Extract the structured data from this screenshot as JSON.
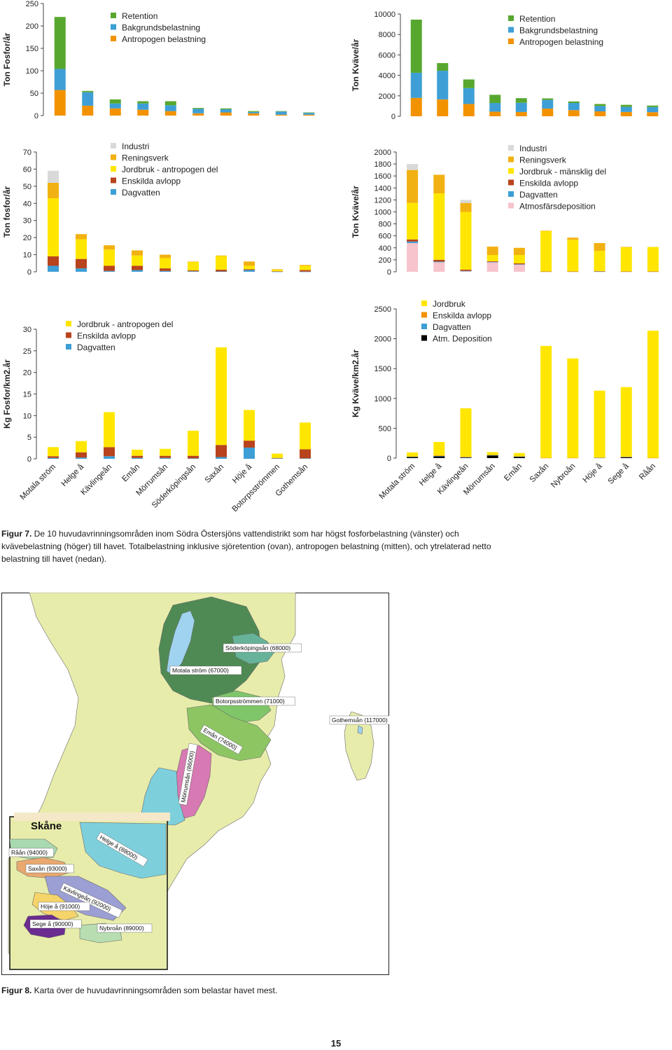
{
  "chart_data": [
    {
      "id": "p-total",
      "type": "bar",
      "stacked": true,
      "title": "",
      "ylabel": "Ton Fosfor/år",
      "ylim": [
        0,
        250
      ],
      "yticks": [
        0,
        50,
        100,
        150,
        200,
        250
      ],
      "categories": [
        "Motala ström",
        "Helge å",
        "Kävlingeån",
        "Emån",
        "Mörrumsån",
        "Söderköpingsån",
        "Saxån",
        "Höje å",
        "Botorpsströmmen",
        "Gothemsån"
      ],
      "show_categories": false,
      "legend": "top-left",
      "series": [
        {
          "name": "Antropogen belastning",
          "color": "#f39200",
          "values": [
            57,
            22,
            16,
            13,
            10,
            5,
            7,
            5,
            2,
            2
          ]
        },
        {
          "name": "Bakgrundsbelastning",
          "color": "#3e9fd6",
          "values": [
            47,
            30,
            11,
            14,
            13,
            10,
            7,
            3,
            7,
            4
          ]
        },
        {
          "name": "Retention",
          "color": "#57a72e",
          "values": [
            116,
            3,
            9,
            5,
            9,
            2,
            2,
            2,
            1,
            1
          ]
        }
      ],
      "legend_order": [
        "Retention",
        "Bakgrundsbelastning",
        "Antropogen belastning"
      ]
    },
    {
      "id": "n-total",
      "type": "bar",
      "stacked": true,
      "title": "",
      "ylabel": "Ton Kväve/år",
      "ylim": [
        0,
        10000
      ],
      "yticks": [
        0,
        2000,
        4000,
        6000,
        8000,
        10000
      ],
      "categories": [
        "Motala ström",
        "Helge å",
        "Kävlingeån",
        "Mörrumsån",
        "Emån",
        "Saxån",
        "Nybroån",
        "Höje å",
        "Sege å",
        "Råån"
      ],
      "show_categories": false,
      "legend": "top-left",
      "series": [
        {
          "name": "Antropogen belastning",
          "color": "#f39200",
          "values": [
            1800,
            1650,
            1200,
            450,
            420,
            750,
            600,
            480,
            420,
            400
          ]
        },
        {
          "name": "Bakgrundsbelastning",
          "color": "#3e9fd6",
          "values": [
            2450,
            2800,
            1550,
            850,
            900,
            850,
            700,
            520,
            500,
            500
          ]
        },
        {
          "name": "Retention",
          "color": "#57a72e",
          "values": [
            5200,
            750,
            850,
            800,
            450,
            150,
            150,
            200,
            200,
            150
          ]
        }
      ],
      "legend_order": [
        "Retention",
        "Bakgrundsbelastning",
        "Antropogen belastning"
      ]
    },
    {
      "id": "p-anthro",
      "type": "bar",
      "stacked": true,
      "title": "",
      "ylabel": "Ton fosfor/år",
      "ylim": [
        0,
        70
      ],
      "yticks": [
        0,
        10,
        20,
        30,
        40,
        50,
        60,
        70
      ],
      "categories": [
        "Motala ström",
        "Helge å",
        "Kävlingeån",
        "Emån",
        "Mörrumsån",
        "Söderköpingsån",
        "Saxån",
        "Höje å",
        "Botorpsströmmen",
        "Gothemsån"
      ],
      "show_categories": false,
      "legend": "top-left",
      "series": [
        {
          "name": "Dagvatten",
          "color": "#3e9fd6",
          "values": [
            3.5,
            2,
            0.5,
            1,
            0.5,
            0.3,
            0.2,
            1,
            0.1,
            0.1
          ]
        },
        {
          "name": "Enskilda avlopp",
          "color": "#b8431d",
          "values": [
            5.5,
            5.5,
            3,
            2.5,
            1.5,
            0.5,
            1,
            0.5,
            0.2,
            0.9
          ]
        },
        {
          "name": "Jordbruk - antropogen del",
          "color": "#ffe600",
          "values": [
            34,
            11.5,
            9.5,
            6,
            6,
            5,
            8,
            2,
            1,
            2.5
          ]
        },
        {
          "name": "Reningsverk",
          "color": "#f2b112",
          "values": [
            9,
            3,
            2.5,
            3,
            2,
            0.2,
            0.3,
            2.5,
            0.2,
            0.5
          ]
        },
        {
          "name": "Industri",
          "color": "#d9d9d9",
          "values": [
            7,
            0,
            0,
            0,
            0,
            0,
            0,
            0,
            0,
            0
          ]
        }
      ],
      "legend_order": [
        "Industri",
        "Reningsverk",
        "Jordbruk - antropogen del",
        "Enskilda avlopp",
        "Dagvatten"
      ]
    },
    {
      "id": "n-anthro",
      "type": "bar",
      "stacked": true,
      "title": "",
      "ylabel": "Ton Kväve/år",
      "ylim": [
        0,
        2000
      ],
      "yticks": [
        0,
        200,
        400,
        600,
        800,
        1000,
        1200,
        1400,
        1600,
        1800,
        2000
      ],
      "categories": [
        "Motala ström",
        "Helge å",
        "Kävlingeån",
        "Mörrumsån",
        "Emån",
        "Saxån",
        "Nybroån",
        "Höje å",
        "Sege å",
        "Råån"
      ],
      "show_categories": false,
      "legend": "top-right",
      "series": [
        {
          "name": "Atmosfärsdeposition",
          "color": "#f7c3cc",
          "values": [
            480,
            160,
            10,
            160,
            120,
            0,
            0,
            0,
            0,
            0
          ]
        },
        {
          "name": "Dagvatten",
          "color": "#3e9fd6",
          "values": [
            25,
            10,
            5,
            5,
            5,
            0,
            0,
            5,
            0,
            0
          ]
        },
        {
          "name": "Enskilda avlopp",
          "color": "#b8431d",
          "values": [
            35,
            30,
            20,
            10,
            15,
            5,
            5,
            5,
            5,
            5
          ]
        },
        {
          "name": "Jordbruk - mänsklig del",
          "color": "#ffe600",
          "values": [
            610,
            1110,
            965,
            105,
            140,
            675,
            530,
            340,
            405,
            410
          ]
        },
        {
          "name": "Reningsverk",
          "color": "#f2b112",
          "values": [
            550,
            310,
            150,
            140,
            120,
            5,
            35,
            130,
            5,
            0
          ]
        },
        {
          "name": "Industri",
          "color": "#d9d9d9",
          "values": [
            100,
            0,
            50,
            0,
            0,
            0,
            0,
            0,
            0,
            0
          ]
        }
      ],
      "legend_order": [
        "Industri",
        "Reningsverk",
        "Jordbruk - mänsklig del",
        "Enskilda avlopp",
        "Dagvatten",
        "Atmosfärsdeposition"
      ]
    },
    {
      "id": "p-area",
      "type": "bar",
      "stacked": true,
      "title": "",
      "ylabel": "Kg Fosfor/km2.år",
      "ylim": [
        0,
        30
      ],
      "yticks": [
        0,
        5,
        10,
        15,
        20,
        25,
        30
      ],
      "categories": [
        "Motala ström",
        "Helge å",
        "Kävlingeån",
        "Emån",
        "Mörrumsån",
        "Söderköpingsån",
        "Saxån",
        "Höje å",
        "Botorpsströmmen",
        "Gothemsån"
      ],
      "show_categories": true,
      "legend": "top-left",
      "series": [
        {
          "name": "Dagvatten",
          "color": "#3e9fd6",
          "values": [
            0.2,
            0.3,
            0.6,
            0.2,
            0.2,
            0.1,
            0.4,
            2.6,
            0.1,
            0.1
          ]
        },
        {
          "name": "Enskilda avlopp",
          "color": "#b8431d",
          "values": [
            0.4,
            1.2,
            2.1,
            0.5,
            0.5,
            0.6,
            2.8,
            1.6,
            0.1,
            2.1
          ]
        },
        {
          "name": "Jordbruk - antropogen del",
          "color": "#ffe600",
          "values": [
            2.1,
            2.6,
            8.1,
            1.4,
            1.6,
            5.8,
            22.6,
            7.1,
            1.0,
            6.2
          ]
        }
      ],
      "legend_order": [
        "Jordbruk - antropogen del",
        "Enskilda avlopp",
        "Dagvatten"
      ]
    },
    {
      "id": "n-area",
      "type": "bar",
      "stacked": true,
      "title": "",
      "ylabel": "Kg Kväve/km2.år",
      "ylim": [
        0,
        2500
      ],
      "yticks": [
        0,
        500,
        1000,
        1500,
        2000,
        2500
      ],
      "categories": [
        "Motala ström",
        "Helge å",
        "Kävlingeån",
        "Mörrumsån",
        "Emån",
        "Saxån",
        "Nybroån",
        "Höje å",
        "Sege å",
        "Råån"
      ],
      "show_categories": true,
      "legend": "top-left",
      "series": [
        {
          "name": "Atm. Deposition",
          "color": "#000000",
          "values": [
            18,
            30,
            10,
            45,
            22,
            0,
            0,
            0,
            15,
            0
          ]
        },
        {
          "name": "Dagvatten",
          "color": "#3e9fd6",
          "values": [
            5,
            5,
            5,
            5,
            5,
            0,
            0,
            5,
            5,
            0
          ]
        },
        {
          "name": "Enskilda avlopp",
          "color": "#f39200",
          "values": [
            5,
            10,
            10,
            5,
            5,
            5,
            5,
            5,
            5,
            5
          ]
        },
        {
          "name": "Jordbruk",
          "color": "#ffe600",
          "values": [
            67,
            225,
            810,
            45,
            53,
            1875,
            1665,
            1120,
            1165,
            2130
          ]
        }
      ],
      "legend_order": [
        "Jordbruk",
        "Enskilda avlopp",
        "Dagvatten",
        "Atm. Deposition"
      ]
    }
  ],
  "fig7_caption": {
    "label": "Figur 7.",
    "text": " De 10 huvudavrinningsområden inom Södra Östersjöns vattendistrikt som har högst fosforbelastning (vänster) och kvävebelastning (höger) till havet. Totalbelastning inklusive sjöretention (ovan), antropogen belastning (mitten), och ytrelaterad netto belastning till havet (nedan)."
  },
  "map": {
    "inset_title": "Skåne",
    "labels": [
      "Söderköpingsån (68000)",
      "Motala ström (67000)",
      "Botorpsströmmen (71000)",
      "Gothemsån (117000)",
      "Emån (74000)",
      "Mörrumsån (86000)",
      "Helge å (88000)",
      "Råån (94000)",
      "Saxån (93000)",
      "Kävlingeån (92000)",
      "Höje å (91000)",
      "Sege å (90000)",
      "Nybroån (89000)"
    ],
    "colors": {
      "land": "#e8ecab",
      "sea": "#ffffff",
      "lake": "#9fd3ef",
      "motala": "#4f8a55",
      "soderkoping": "#66b39a",
      "botorp": "#7fc66a",
      "eman": "#8dc563",
      "morrum": "#d779b2",
      "helge": "#7ecfdc",
      "raan": "#a9d9b0",
      "saxan": "#e9a86f",
      "kavlinge": "#9c9fd3",
      "hoje": "#f5d46a",
      "sege": "#6b2c8f",
      "nybro": "#b7ddb1",
      "gothem": "#e8ecab"
    }
  },
  "fig8_caption": {
    "label": "Figur 8.",
    "text": " Karta över de huvudavrinningsområden som belastar havet mest."
  },
  "page_number": "15"
}
